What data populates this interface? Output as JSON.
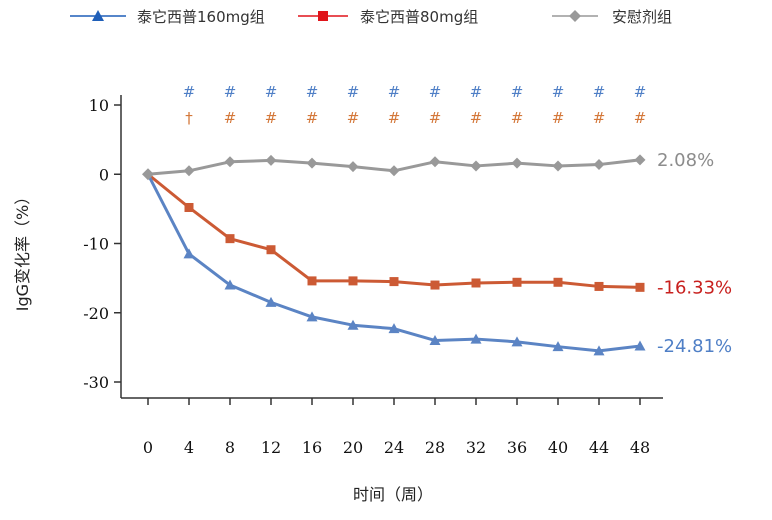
{
  "chart_data": {
    "type": "line",
    "xlabel": "时间（周）",
    "ylabel": "IgG变化率（%）",
    "xlim": [
      0,
      48
    ],
    "ylim": [
      -30,
      10
    ],
    "x": [
      0,
      4,
      8,
      12,
      16,
      20,
      24,
      28,
      32,
      36,
      40,
      44,
      48
    ],
    "x_tick_labels": [
      "0",
      "4",
      "8",
      "12",
      "16",
      "20",
      "24",
      "28",
      "32",
      "36",
      "40",
      "44",
      "48"
    ],
    "y_ticks": [
      10,
      0,
      -10,
      -20,
      -30
    ],
    "y_tick_labels": [
      "10",
      "0",
      "-10",
      "-20",
      "-30"
    ],
    "legend_position": "top",
    "grid": false,
    "series": [
      {
        "name": "泰它西普160mg组",
        "color": "#5b84c4",
        "legend_marker_color": "#1f5fb8",
        "marker": "triangle",
        "values": [
          0,
          -11.5,
          -16.0,
          -18.5,
          -20.6,
          -21.8,
          -22.3,
          -24.0,
          -23.8,
          -24.2,
          -24.9,
          -25.5,
          -24.81
        ],
        "end_label": "-24.81%",
        "end_label_color": "#4f7fc6"
      },
      {
        "name": "泰它西普80mg组",
        "color": "#cc5a34",
        "legend_marker_color": "#e0141a",
        "marker": "square",
        "values": [
          0,
          -4.8,
          -9.3,
          -10.9,
          -15.4,
          -15.4,
          -15.5,
          -16.0,
          -15.7,
          -15.6,
          -15.6,
          -16.2,
          -16.33
        ],
        "end_label": "-16.33%",
        "end_label_color": "#c8201e"
      },
      {
        "name": "安慰剂组",
        "color": "#999999",
        "legend_marker_color": "#999999",
        "marker": "diamond",
        "values": [
          0,
          0.5,
          1.8,
          2.0,
          1.6,
          1.1,
          0.5,
          1.8,
          1.2,
          1.6,
          1.2,
          1.4,
          2.08
        ],
        "end_label": "2.08%",
        "end_label_color": "#8c8c8c"
      }
    ],
    "significance_rows": [
      {
        "color": "#4f7fc6",
        "marks": [
          "",
          "#",
          "#",
          "#",
          "#",
          "#",
          "#",
          "#",
          "#",
          "#",
          "#",
          "#",
          "#"
        ]
      },
      {
        "color": "#d4783a",
        "marks": [
          "",
          "†",
          "#",
          "#",
          "#",
          "#",
          "#",
          "#",
          "#",
          "#",
          "#",
          "#",
          "#"
        ]
      }
    ]
  }
}
